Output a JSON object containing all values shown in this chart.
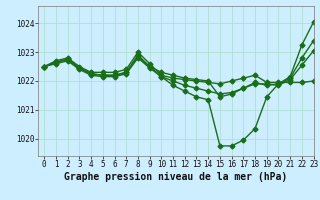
{
  "title": "Graphe pression niveau de la mer (hPa)",
  "bg_color": "#cceeff",
  "grid_color": "#aaddcc",
  "line_color": "#1a6e1a",
  "xlim": [
    -0.5,
    23
  ],
  "ylim": [
    1019.4,
    1024.6
  ],
  "yticks": [
    1020,
    1021,
    1022,
    1023,
    1024
  ],
  "xticks": [
    0,
    1,
    2,
    3,
    4,
    5,
    6,
    7,
    8,
    9,
    10,
    11,
    12,
    13,
    14,
    15,
    16,
    17,
    18,
    19,
    20,
    21,
    22,
    23
  ],
  "series": [
    [
      1022.5,
      1022.7,
      1022.8,
      1022.5,
      1022.3,
      1022.3,
      1022.3,
      1022.4,
      1023.0,
      1022.6,
      1022.2,
      1022.1,
      1022.05,
      1022.0,
      1021.95,
      1021.9,
      1022.0,
      1022.1,
      1022.2,
      1021.95,
      1021.95,
      1021.95,
      1021.95,
      1022.0
    ],
    [
      1022.5,
      1022.65,
      1022.75,
      1022.45,
      1022.25,
      1022.2,
      1022.2,
      1022.3,
      1022.85,
      1022.5,
      1022.15,
      1022.0,
      1021.85,
      1021.75,
      1021.65,
      1021.55,
      1021.6,
      1021.75,
      1021.95,
      1021.85,
      1021.9,
      1022.1,
      1022.8,
      1023.4
    ],
    [
      1022.5,
      1022.6,
      1022.7,
      1022.4,
      1022.2,
      1022.15,
      1022.15,
      1022.25,
      1022.8,
      1022.45,
      1022.15,
      1021.85,
      1021.65,
      1021.45,
      1021.35,
      1019.75,
      1019.75,
      1019.95,
      1020.35,
      1021.45,
      1021.9,
      1022.15,
      1023.25,
      1024.05
    ],
    [
      1022.5,
      1022.65,
      1022.75,
      1022.45,
      1022.25,
      1022.2,
      1022.2,
      1022.3,
      1022.9,
      1022.5,
      1022.3,
      1022.2,
      1022.1,
      1022.05,
      1022.0,
      1021.45,
      1021.55,
      1021.75,
      1021.9,
      1021.9,
      1021.85,
      1022.05,
      1022.55,
      1023.05
    ]
  ],
  "marker": "D",
  "marker_size": 2.5,
  "linewidth": 1.0,
  "title_fontsize": 7,
  "tick_fontsize": 5.5,
  "font_family": "monospace"
}
